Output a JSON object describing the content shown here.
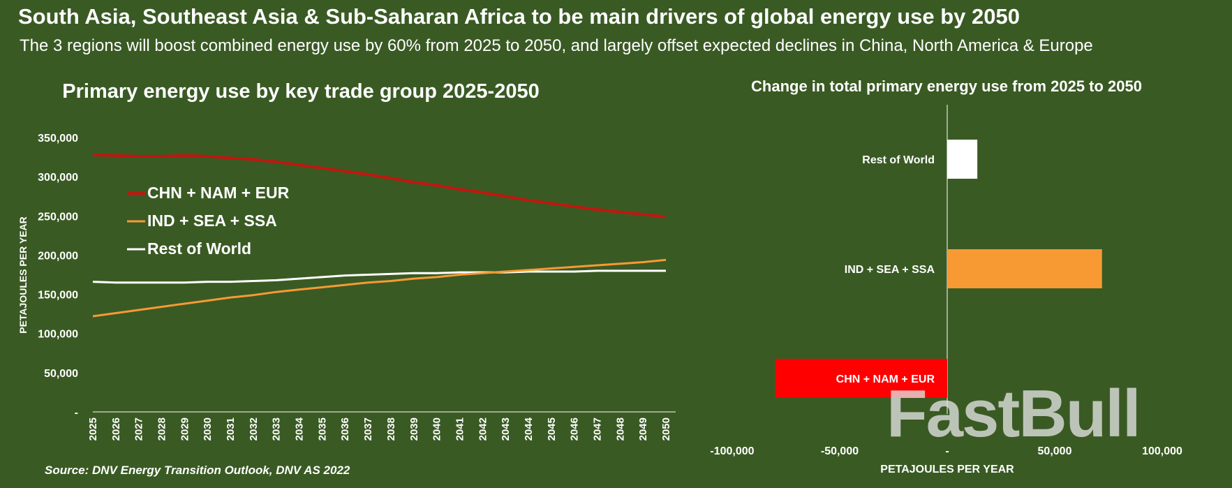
{
  "header": {
    "title": "South Asia, Southeast Asia & Sub-Saharan Africa to be main drivers of global energy use by 2050",
    "subtitle": "The 3 regions will boost combined energy use by 60% from 2025 to 2050, and largely offset expected declines in China, North America & Europe"
  },
  "source": "Source: DNV Energy Transition Outlook, DNV AS 2022",
  "watermark": "FastBull",
  "colors": {
    "background": "#3a5a24",
    "chn_nam_eur_line": "#c0170f",
    "ind_sea_ssa": "#f79a33",
    "rest_of_world": "#ffffff",
    "chn_nam_eur_bar": "#ff0000",
    "axis": "#ffffff"
  },
  "chart_data": [
    {
      "type": "line",
      "title": "Primary energy use by key trade group 2025-2050",
      "xlabel": "",
      "ylabel": "PETAJOULES PER YEAR",
      "x": [
        2025,
        2026,
        2027,
        2028,
        2029,
        2030,
        2031,
        2032,
        2033,
        2034,
        2035,
        2036,
        2037,
        2038,
        2039,
        2040,
        2041,
        2042,
        2043,
        2044,
        2045,
        2046,
        2047,
        2048,
        2049,
        2050
      ],
      "ylim": [
        0,
        350000
      ],
      "yticks": [
        0,
        50000,
        100000,
        150000,
        200000,
        250000,
        300000,
        350000
      ],
      "ytick_labels": [
        "-",
        "50,000",
        "100,000",
        "150,000",
        "200,000",
        "250,000",
        "300,000",
        "350,000"
      ],
      "grid": false,
      "legend_position": "upper-left",
      "series": [
        {
          "name": "CHN + NAM + EUR",
          "color": "#c0170f",
          "values": [
            328000,
            327000,
            326000,
            326000,
            327000,
            326000,
            324000,
            322000,
            319000,
            315000,
            311000,
            307000,
            303000,
            298000,
            293000,
            289000,
            284000,
            280000,
            275000,
            270000,
            266000,
            262000,
            258000,
            255000,
            252000,
            249000
          ]
        },
        {
          "name": "IND + SEA + SSA",
          "color": "#f79a33",
          "values": [
            122000,
            126000,
            130000,
            134000,
            138000,
            142000,
            146000,
            149000,
            153000,
            156000,
            159000,
            162000,
            165000,
            167000,
            170000,
            172000,
            175000,
            177000,
            179000,
            181000,
            183000,
            185000,
            187000,
            189000,
            191000,
            194000
          ]
        },
        {
          "name": "Rest of World",
          "color": "#ffffff",
          "values": [
            166000,
            165000,
            165000,
            165000,
            165000,
            166000,
            166000,
            167000,
            168000,
            170000,
            172000,
            174000,
            175000,
            176000,
            177000,
            177000,
            178000,
            178000,
            178000,
            179000,
            179000,
            179000,
            180000,
            180000,
            180000,
            180000
          ]
        }
      ]
    },
    {
      "type": "bar",
      "orientation": "horizontal",
      "title": "Change in total primary energy use from 2025 to 2050",
      "xlabel": "PETAJOULES PER YEAR",
      "ylabel": "",
      "xlim": [
        -100000,
        100000
      ],
      "xticks": [
        -100000,
        -50000,
        0,
        50000,
        100000
      ],
      "xtick_labels": [
        "-100,000",
        "-50,000",
        "-",
        "50,000",
        "100,000"
      ],
      "categories": [
        "Rest of World",
        "IND + SEA + SSA",
        "CHN + NAM + EUR"
      ],
      "values": [
        14000,
        72000,
        -80000
      ],
      "colors": [
        "#ffffff",
        "#f79a33",
        "#ff0000"
      ]
    }
  ]
}
